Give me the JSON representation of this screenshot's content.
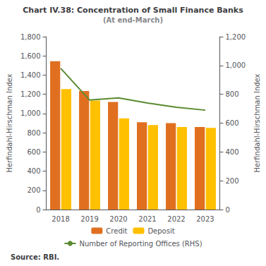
{
  "chart_data": {
    "type": "bar",
    "title": "Chart IV.38: Concentration of Small Finance Banks",
    "subtitle": "(At end-March)",
    "categories": [
      "2018",
      "2019",
      "2020",
      "2021",
      "2022",
      "2023"
    ],
    "series": [
      {
        "name": "Credit",
        "type": "bar",
        "color": "#E07020",
        "values": [
          1545,
          1235,
          1120,
          910,
          900,
          860
        ]
      },
      {
        "name": "Deposit",
        "type": "bar",
        "color": "#FFC000",
        "values": [
          1255,
          1135,
          950,
          880,
          860,
          850
        ]
      },
      {
        "name": "Number of Reporting Offices (RHS)",
        "type": "line",
        "color": "#5A8A30",
        "axis": "y2",
        "values": [
          980,
          760,
          775,
          740,
          710,
          690
        ]
      }
    ],
    "ylabel": "Herfindahl-Hirschman Index",
    "y2label": "Herfindahl-Hirschman Index",
    "ylim": [
      0,
      1800
    ],
    "yticks": [
      0,
      200,
      400,
      600,
      800,
      {
        "value": 1000,
        "label": "1,000"
      },
      {
        "value": 1200,
        "label": "1,200"
      },
      {
        "value": 1400,
        "label": "1,400"
      },
      {
        "value": 1600,
        "label": "1,600"
      },
      {
        "value": 1800,
        "label": "1,800"
      }
    ],
    "y2lim": [
      0,
      1200
    ],
    "y2ticks": [
      0,
      200,
      400,
      600,
      800,
      {
        "value": 1000,
        "label": "1,000"
      },
      {
        "value": 1200,
        "label": "1,200"
      }
    ],
    "annotations": [
      "Source: RBI."
    ],
    "legend": "bottom",
    "grid": false
  }
}
